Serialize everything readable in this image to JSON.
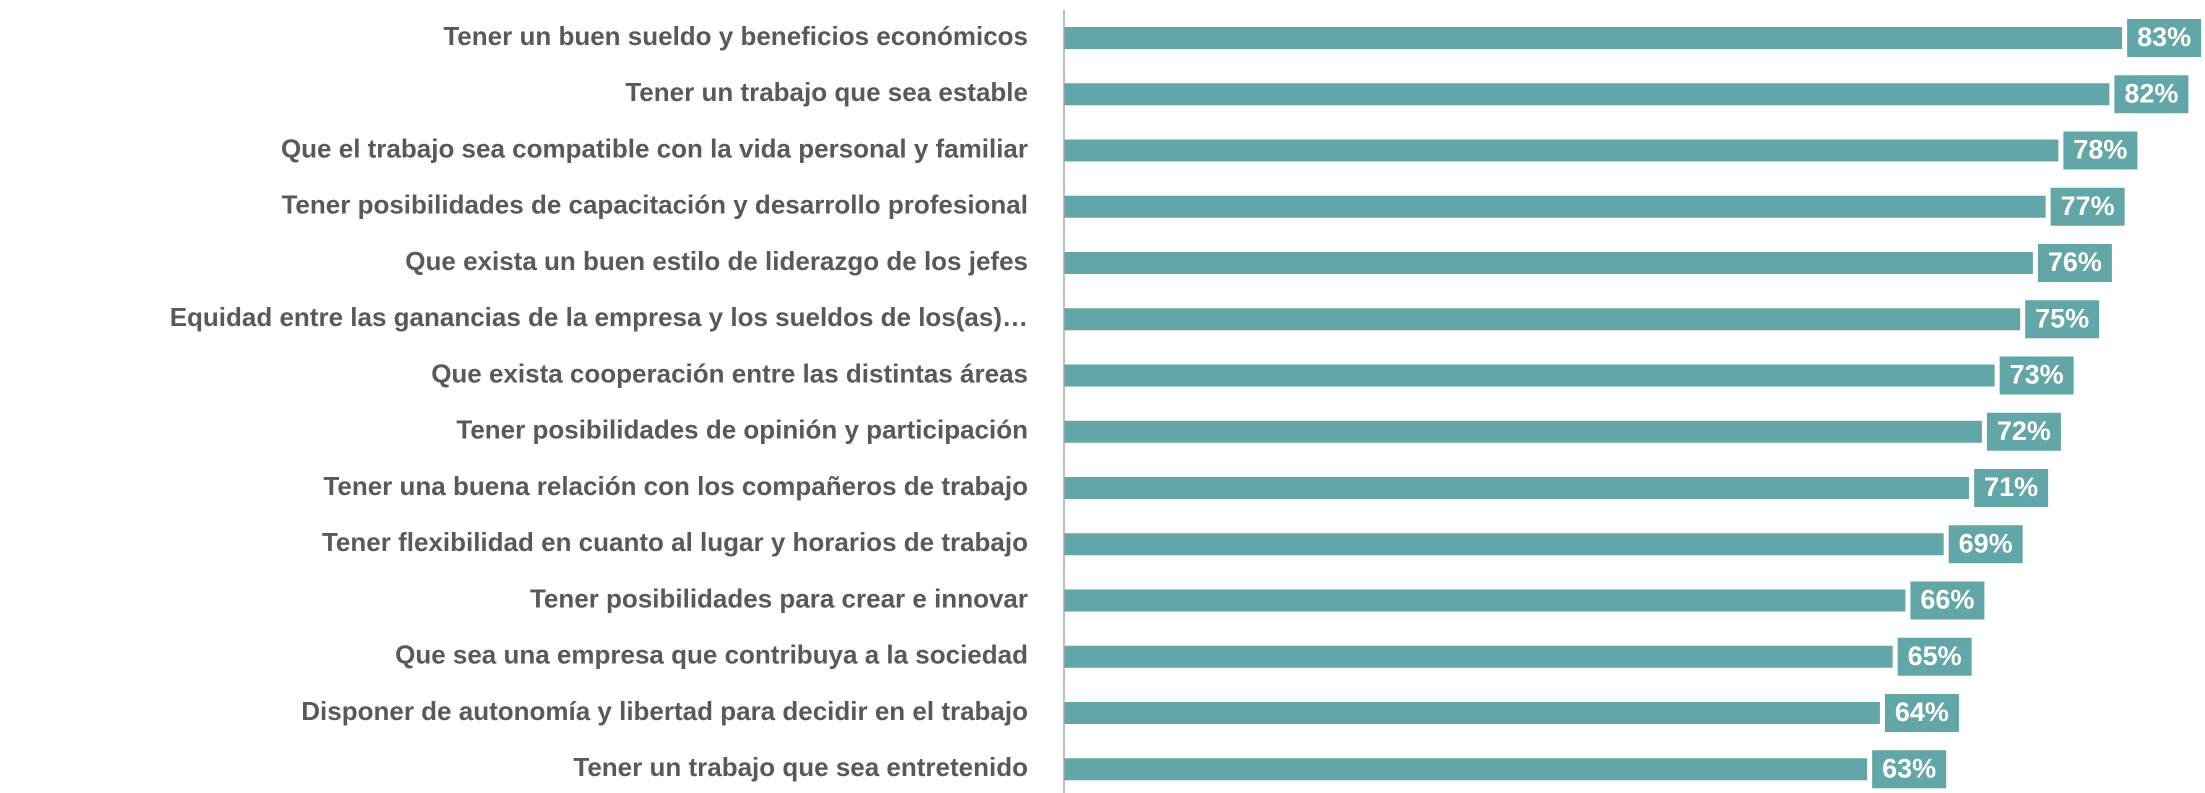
{
  "chart_data": {
    "type": "barh",
    "categories": [
      "Tener un buen sueldo y beneficios económicos",
      "Tener un trabajo que sea estable",
      "Que el trabajo sea compatible con la vida personal y familiar",
      "Tener posibilidades de capacitación y desarrollo profesional",
      "Que exista un buen estilo de liderazgo de los jefes",
      "Equidad entre las ganancias de la empresa y los sueldos de los(as)…",
      "Que exista cooperación entre las distintas áreas",
      "Tener posibilidades de opinión y participación",
      "Tener una buena relación con los compañeros de trabajo",
      "Tener flexibilidad en cuanto al lugar y horarios de trabajo",
      "Tener posibilidades para crear e innovar",
      "Que sea una empresa que contribuya a la sociedad",
      "Disponer de autonomía y libertad para decidir en el trabajo",
      "Tener un trabajo que sea entretenido"
    ],
    "values": [
      83,
      82,
      78,
      77,
      76,
      75,
      73,
      72,
      71,
      69,
      66,
      65,
      64,
      63
    ],
    "value_labels": [
      "83%",
      "82%",
      "78%",
      "77%",
      "76%",
      "75%",
      "73%",
      "72%",
      "71%",
      "69%",
      "66%",
      "65%",
      "64%",
      "63%"
    ],
    "color": "#62a6a8",
    "xlim": [
      0,
      89.5
    ]
  }
}
